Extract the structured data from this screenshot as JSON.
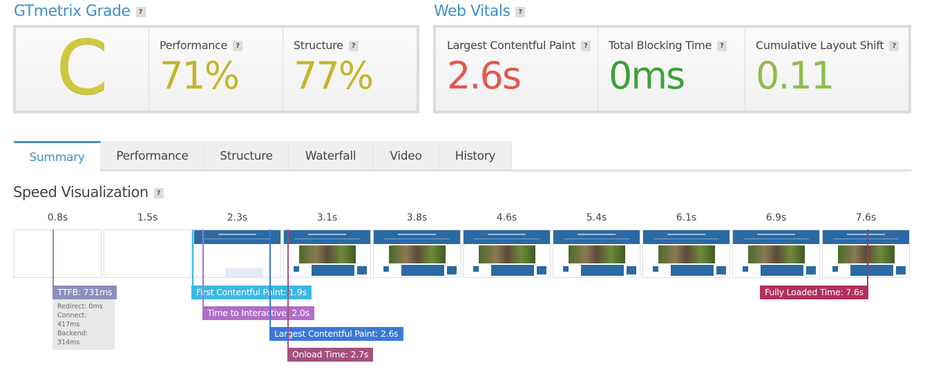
{
  "help_icon": "?",
  "grade": {
    "title": "GTmetrix Grade",
    "letter": "C",
    "metrics": [
      {
        "label": "Performance",
        "value": "71%"
      },
      {
        "label": "Structure",
        "value": "77%"
      }
    ]
  },
  "web_vitals": {
    "title": "Web Vitals",
    "metrics": [
      {
        "label": "Largest Contentful Paint",
        "value": "2.6s"
      },
      {
        "label": "Total Blocking Time",
        "value": "0ms"
      },
      {
        "label": "Cumulative Layout Shift",
        "value": "0.11"
      }
    ]
  },
  "tabs": [
    "Summary",
    "Performance",
    "Structure",
    "Waterfall",
    "Video",
    "History"
  ],
  "speed_visualization": {
    "title": "Speed Visualization",
    "frame_times": [
      "0.8s",
      "1.5s",
      "2.3s",
      "3.1s",
      "3.8s",
      "4.6s",
      "5.4s",
      "6.1s",
      "6.9s",
      "7.6s"
    ],
    "markers": [
      {
        "label": "TTFB: 731ms",
        "details": [
          "Redirect: 0ms",
          "Connect: 417ms",
          "Backend: 314ms"
        ]
      },
      {
        "label": "First Contentful Paint: 1.9s"
      },
      {
        "label": "Time to Interactive: 2.0s"
      },
      {
        "label": "Largest Contentful Paint: 2.6s"
      },
      {
        "label": "Onload Time: 2.7s"
      },
      {
        "label": "Fully Loaded Time: 7.6s"
      }
    ]
  }
}
